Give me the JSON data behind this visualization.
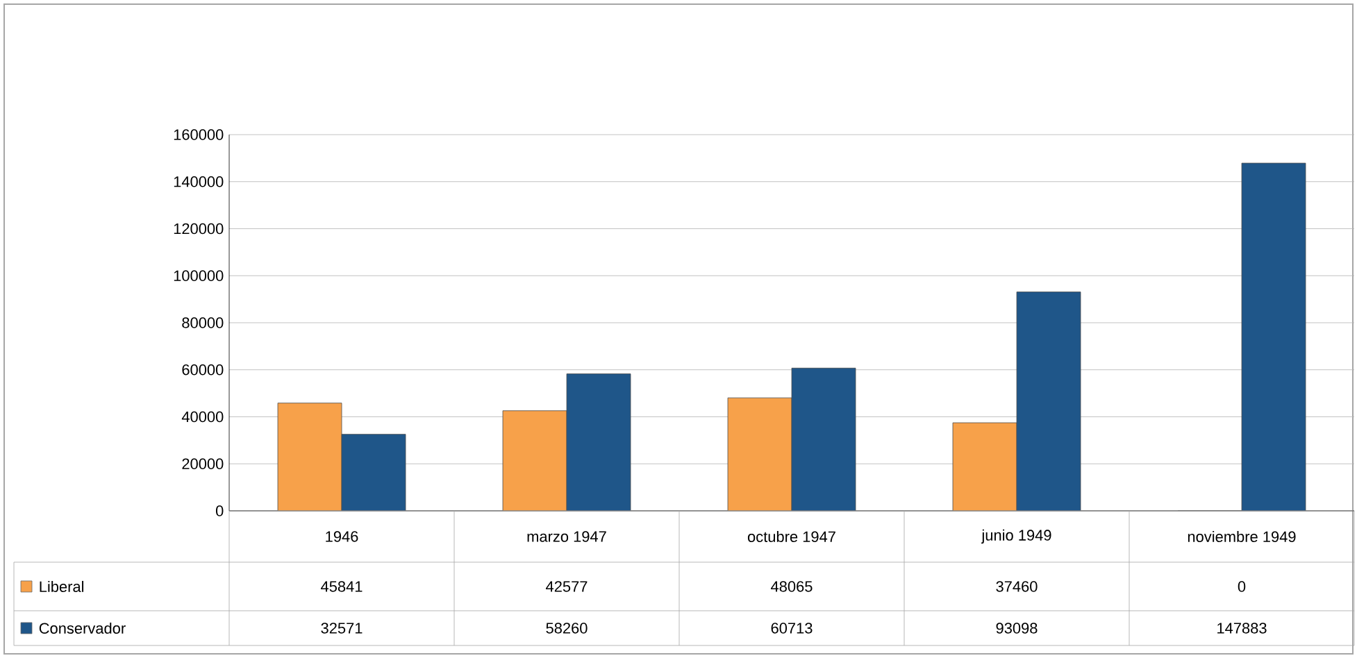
{
  "chart_data": {
    "type": "bar",
    "categories": [
      "1946",
      "marzo 1947",
      "octubre 1947",
      "junio 1949",
      "noviembre 1949"
    ],
    "series": [
      {
        "name": "Liberal",
        "color": "#f7a14a",
        "values": [
          45841,
          42577,
          48065,
          37460,
          0
        ]
      },
      {
        "name": "Conservador",
        "color": "#1f5689",
        "values": [
          32571,
          58260,
          60713,
          93098,
          147883
        ]
      }
    ],
    "ylim": [
      0,
      160000
    ],
    "yticks": [
      0,
      20000,
      40000,
      60000,
      80000,
      100000,
      120000,
      140000,
      160000
    ],
    "grid": "y",
    "legend": "bottom",
    "data_labels": true
  }
}
